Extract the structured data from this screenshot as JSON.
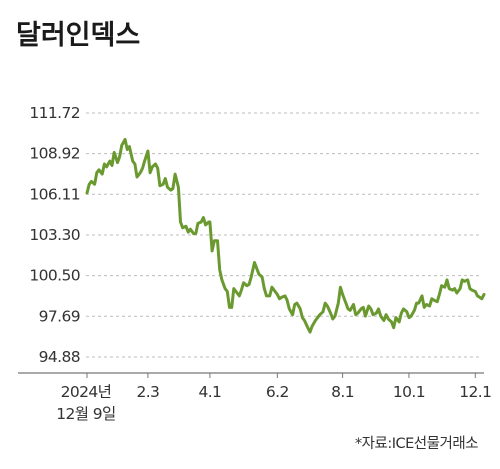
{
  "chart_data": {
    "type": "line",
    "title": "달러인덱스",
    "source": "*자료:ICE선물거래소",
    "y_ticks": [
      "111.72",
      "108.92",
      "106.11",
      "103.30",
      "100.50",
      "97.69",
      "94.88"
    ],
    "ylim": [
      94.88,
      111.72
    ],
    "x_ticks": [
      {
        "label": "2024년",
        "sublabel": "12월 9일",
        "date": "2024-12-09"
      },
      {
        "label": "2.3",
        "date": "2025-02-03"
      },
      {
        "label": "4.1",
        "date": "2025-04-01"
      },
      {
        "label": "6.2",
        "date": "2025-06-02"
      },
      {
        "label": "8.1",
        "date": "2025-08-01"
      },
      {
        "label": "10.1",
        "date": "2025-10-01"
      },
      {
        "label": "12.1",
        "date": "2025-12-01"
      }
    ],
    "grid": true,
    "series": [
      {
        "color": "#6a9a2f",
        "points": [
          [
            "2024-12-09",
            106.2
          ],
          [
            "2024-12-11",
            106.8
          ],
          [
            "2024-12-13",
            107.0
          ],
          [
            "2024-12-16",
            106.8
          ],
          [
            "2024-12-18",
            107.6
          ],
          [
            "2024-12-20",
            107.8
          ],
          [
            "2024-12-23",
            107.5
          ],
          [
            "2024-12-25",
            108.2
          ],
          [
            "2024-12-27",
            108.0
          ],
          [
            "2024-12-30",
            108.4
          ],
          [
            "2025-01-01",
            108.1
          ],
          [
            "2025-01-03",
            109.0
          ],
          [
            "2025-01-06",
            108.3
          ],
          [
            "2025-01-08",
            108.7
          ],
          [
            "2025-01-10",
            109.5
          ],
          [
            "2025-01-13",
            109.9
          ],
          [
            "2025-01-15",
            109.2
          ],
          [
            "2025-01-17",
            109.4
          ],
          [
            "2025-01-20",
            108.4
          ],
          [
            "2025-01-22",
            108.2
          ],
          [
            "2025-01-24",
            107.3
          ],
          [
            "2025-01-27",
            107.6
          ],
          [
            "2025-01-29",
            107.9
          ],
          [
            "2025-01-31",
            108.4
          ],
          [
            "2025-02-03",
            109.1
          ],
          [
            "2025-02-05",
            107.6
          ],
          [
            "2025-02-07",
            108.0
          ],
          [
            "2025-02-10",
            108.2
          ],
          [
            "2025-02-12",
            107.9
          ],
          [
            "2025-02-14",
            106.7
          ],
          [
            "2025-02-17",
            106.8
          ],
          [
            "2025-02-19",
            107.2
          ],
          [
            "2025-02-21",
            106.6
          ],
          [
            "2025-02-24",
            106.4
          ],
          [
            "2025-02-26",
            106.5
          ],
          [
            "2025-02-28",
            107.5
          ],
          [
            "2025-03-03",
            106.6
          ],
          [
            "2025-03-05",
            104.2
          ],
          [
            "2025-03-07",
            103.8
          ],
          [
            "2025-03-10",
            103.9
          ],
          [
            "2025-03-12",
            103.5
          ],
          [
            "2025-03-14",
            103.7
          ],
          [
            "2025-03-17",
            103.4
          ],
          [
            "2025-03-19",
            103.4
          ],
          [
            "2025-03-21",
            104.1
          ],
          [
            "2025-03-24",
            104.2
          ],
          [
            "2025-03-26",
            104.5
          ],
          [
            "2025-03-28",
            104.0
          ],
          [
            "2025-03-31",
            104.2
          ],
          [
            "2025-04-01",
            104.2
          ],
          [
            "2025-04-03",
            102.2
          ],
          [
            "2025-04-05",
            102.9
          ],
          [
            "2025-04-08",
            102.9
          ],
          [
            "2025-04-10",
            100.9
          ],
          [
            "2025-04-12",
            100.2
          ],
          [
            "2025-04-15",
            99.6
          ],
          [
            "2025-04-17",
            99.4
          ],
          [
            "2025-04-19",
            98.3
          ],
          [
            "2025-04-21",
            98.3
          ],
          [
            "2025-04-23",
            99.6
          ],
          [
            "2025-04-25",
            99.4
          ],
          [
            "2025-04-28",
            99.1
          ],
          [
            "2025-04-30",
            99.5
          ],
          [
            "2025-05-02",
            100.0
          ],
          [
            "2025-05-05",
            99.8
          ],
          [
            "2025-05-07",
            99.9
          ],
          [
            "2025-05-09",
            100.4
          ],
          [
            "2025-05-12",
            101.4
          ],
          [
            "2025-05-14",
            101.0
          ],
          [
            "2025-05-16",
            100.6
          ],
          [
            "2025-05-19",
            100.4
          ],
          [
            "2025-05-21",
            99.6
          ],
          [
            "2025-05-23",
            99.1
          ],
          [
            "2025-05-26",
            99.1
          ],
          [
            "2025-05-28",
            99.7
          ],
          [
            "2025-05-30",
            99.5
          ],
          [
            "2025-06-02",
            99.2
          ],
          [
            "2025-06-04",
            98.9
          ],
          [
            "2025-06-06",
            99.0
          ],
          [
            "2025-06-09",
            99.1
          ],
          [
            "2025-06-11",
            98.8
          ],
          [
            "2025-06-13",
            98.2
          ],
          [
            "2025-06-16",
            97.8
          ],
          [
            "2025-06-18",
            98.5
          ],
          [
            "2025-06-20",
            98.6
          ],
          [
            "2025-06-23",
            98.2
          ],
          [
            "2025-06-25",
            97.6
          ],
          [
            "2025-06-27",
            97.4
          ],
          [
            "2025-06-30",
            96.9
          ],
          [
            "2025-07-02",
            96.6
          ],
          [
            "2025-07-04",
            97.0
          ],
          [
            "2025-07-07",
            97.4
          ],
          [
            "2025-07-09",
            97.6
          ],
          [
            "2025-07-11",
            97.8
          ],
          [
            "2025-07-14",
            98.0
          ],
          [
            "2025-07-16",
            98.6
          ],
          [
            "2025-07-18",
            98.4
          ],
          [
            "2025-07-21",
            97.9
          ],
          [
            "2025-07-23",
            97.5
          ],
          [
            "2025-07-25",
            97.7
          ],
          [
            "2025-07-28",
            98.6
          ],
          [
            "2025-07-30",
            99.7
          ],
          [
            "2025-08-01",
            99.2
          ],
          [
            "2025-08-04",
            98.6
          ],
          [
            "2025-08-06",
            98.2
          ],
          [
            "2025-08-08",
            98.1
          ],
          [
            "2025-08-11",
            98.5
          ],
          [
            "2025-08-13",
            97.8
          ],
          [
            "2025-08-15",
            97.9
          ],
          [
            "2025-08-18",
            98.2
          ],
          [
            "2025-08-20",
            98.3
          ],
          [
            "2025-08-22",
            97.7
          ],
          [
            "2025-08-25",
            98.4
          ],
          [
            "2025-08-27",
            98.2
          ],
          [
            "2025-08-29",
            97.8
          ],
          [
            "2025-09-01",
            97.9
          ],
          [
            "2025-09-03",
            98.2
          ],
          [
            "2025-09-05",
            97.7
          ],
          [
            "2025-09-08",
            97.4
          ],
          [
            "2025-09-10",
            97.8
          ],
          [
            "2025-09-12",
            97.5
          ],
          [
            "2025-09-15",
            97.3
          ],
          [
            "2025-09-17",
            96.9
          ],
          [
            "2025-09-19",
            97.6
          ],
          [
            "2025-09-22",
            97.3
          ],
          [
            "2025-09-24",
            97.9
          ],
          [
            "2025-09-26",
            98.2
          ],
          [
            "2025-09-29",
            98.0
          ],
          [
            "2025-10-01",
            97.6
          ],
          [
            "2025-10-03",
            97.7
          ],
          [
            "2025-10-06",
            98.1
          ],
          [
            "2025-10-08",
            98.6
          ],
          [
            "2025-10-10",
            98.6
          ],
          [
            "2025-10-13",
            99.1
          ],
          [
            "2025-10-15",
            98.3
          ],
          [
            "2025-10-17",
            98.5
          ],
          [
            "2025-10-20",
            98.4
          ],
          [
            "2025-10-22",
            98.9
          ],
          [
            "2025-10-24",
            98.8
          ],
          [
            "2025-10-27",
            98.7
          ],
          [
            "2025-10-29",
            99.2
          ],
          [
            "2025-10-31",
            99.8
          ],
          [
            "2025-11-03",
            99.7
          ],
          [
            "2025-11-05",
            100.2
          ],
          [
            "2025-11-07",
            99.6
          ],
          [
            "2025-11-10",
            99.5
          ],
          [
            "2025-11-12",
            99.6
          ],
          [
            "2025-11-14",
            99.3
          ],
          [
            "2025-11-17",
            99.6
          ],
          [
            "2025-11-19",
            100.2
          ],
          [
            "2025-11-21",
            100.1
          ],
          [
            "2025-11-24",
            100.2
          ],
          [
            "2025-11-26",
            99.6
          ],
          [
            "2025-11-28",
            99.5
          ],
          [
            "2025-12-01",
            99.4
          ],
          [
            "2025-12-03",
            99.1
          ],
          [
            "2025-12-05",
            99.0
          ],
          [
            "2025-12-07",
            98.9
          ],
          [
            "2025-12-09",
            99.2
          ]
        ]
      }
    ]
  }
}
